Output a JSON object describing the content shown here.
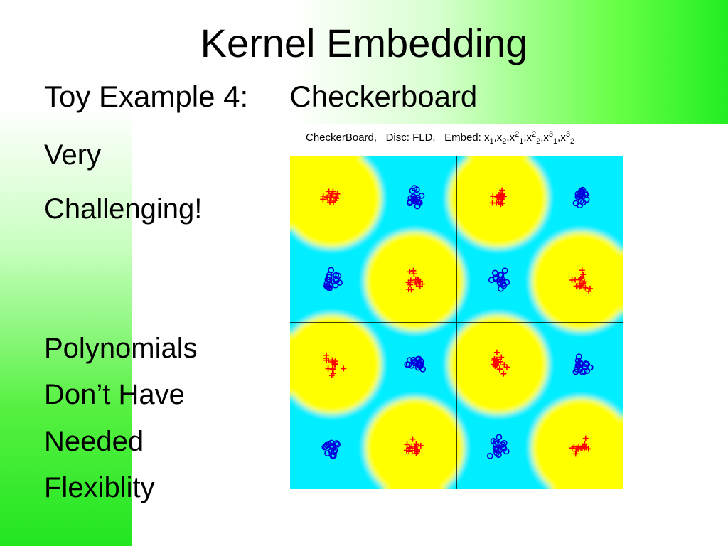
{
  "slide": {
    "title": "Kernel Embedding",
    "subtitle": "Toy Example 4:     Checkerboard",
    "left_lines": [
      "Very",
      "Challenging!",
      "Polynomials",
      "Don’t Have",
      "Needed",
      "Flexiblity"
    ]
  },
  "plot": {
    "caption": {
      "dataset": "CheckerBoard,",
      "disc": "Disc: FLD,",
      "embed_label": "Embed: x",
      "terms": [
        {
          "base": "x",
          "sub": "1",
          "sup": ""
        },
        {
          "base": "x",
          "sub": "2",
          "sup": ""
        },
        {
          "base": "x",
          "sub": "1",
          "sup": "2"
        },
        {
          "base": "x",
          "sub": "2",
          "sup": "2"
        },
        {
          "base": "x",
          "sub": "1",
          "sup": "3"
        },
        {
          "base": "x",
          "sub": "2",
          "sup": "3"
        }
      ]
    },
    "colors": {
      "yellow": "#ffff00",
      "cyan": "#00eeff",
      "plus": "#ff0000",
      "circle": "#0000dd",
      "axis": "#000000"
    },
    "chart_data": {
      "type": "scatter",
      "xlim": [
        -1,
        1
      ],
      "ylim": [
        -1,
        1
      ],
      "grid": false,
      "series": [
        {
          "marker": "plus",
          "clusters": [
            [
              -0.75,
              0.75
            ],
            [
              -0.25,
              0.25
            ],
            [
              0.25,
              0.75
            ],
            [
              0.75,
              0.25
            ],
            [
              -0.75,
              -0.25
            ],
            [
              -0.25,
              -0.75
            ],
            [
              0.25,
              -0.25
            ],
            [
              0.75,
              -0.75
            ]
          ]
        },
        {
          "marker": "circle",
          "clusters": [
            [
              -0.25,
              0.75
            ],
            [
              -0.75,
              0.25
            ],
            [
              0.75,
              0.75
            ],
            [
              0.25,
              0.25
            ],
            [
              -0.25,
              -0.25
            ],
            [
              -0.75,
              -0.75
            ],
            [
              0.75,
              -0.25
            ],
            [
              0.25,
              -0.75
            ]
          ]
        }
      ]
    }
  }
}
